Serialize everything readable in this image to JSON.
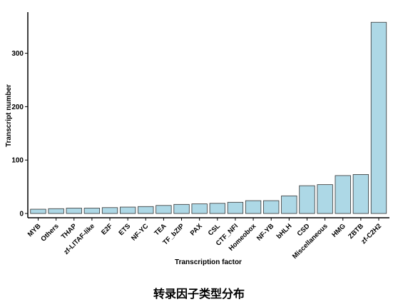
{
  "caption": "转录因子类型分布",
  "chart_data": {
    "type": "bar",
    "xlabel": "Transcription factor",
    "ylabel": "Transcript number",
    "categories": [
      "MYB",
      "Others",
      "THAP",
      "zf-LITAF-like",
      "E2F",
      "ETS",
      "NF-YC",
      "TEA",
      "TF_bZIP",
      "PAX",
      "CSL",
      "CTF_NFI",
      "Homeobox",
      "NF-YB",
      "bHLH",
      "CSD",
      "Miscellaneous",
      "HMG",
      "ZBTB",
      "zf-C2H2"
    ],
    "values": [
      8,
      9,
      10,
      10,
      11,
      12,
      13,
      15,
      17,
      18,
      19,
      21,
      24,
      24,
      33,
      52,
      54,
      71,
      73,
      358
    ],
    "yticks": [
      0,
      100,
      200,
      300
    ],
    "ylim": [
      -8,
      377
    ],
    "grid": false,
    "colors": {
      "bar_fill": "#add8e6",
      "bar_stroke": "#333333",
      "axis": "#000000"
    }
  }
}
